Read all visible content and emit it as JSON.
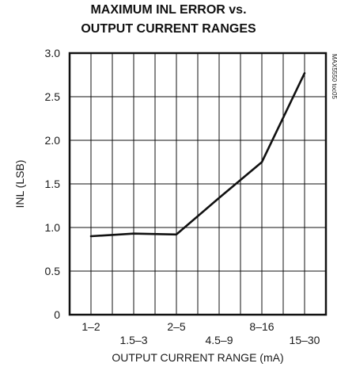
{
  "chart_data": {
    "type": "line",
    "title_lines": [
      "MAXIMUM INL ERROR vs.",
      "OUTPUT CURRENT RANGES"
    ],
    "xlabel": "OUTPUT CURRENT RANGE (mA)",
    "ylabel": "INL (LSB)",
    "side_label": "MAX5550 toc05",
    "categories": [
      "1–2",
      "1.5–3",
      "2–5",
      "4.5–9",
      "8–16",
      "15–30"
    ],
    "yticks": [
      "0",
      "0.5",
      "1.0",
      "1.5",
      "2.0",
      "2.5",
      "3.0"
    ],
    "ylim": [
      0,
      3.0
    ],
    "grid": true,
    "series": [
      {
        "values": [
          0.9,
          0.93,
          0.92,
          1.34,
          1.75,
          2.77
        ]
      }
    ],
    "line_color": "#111111",
    "grid_color": "#111111"
  }
}
